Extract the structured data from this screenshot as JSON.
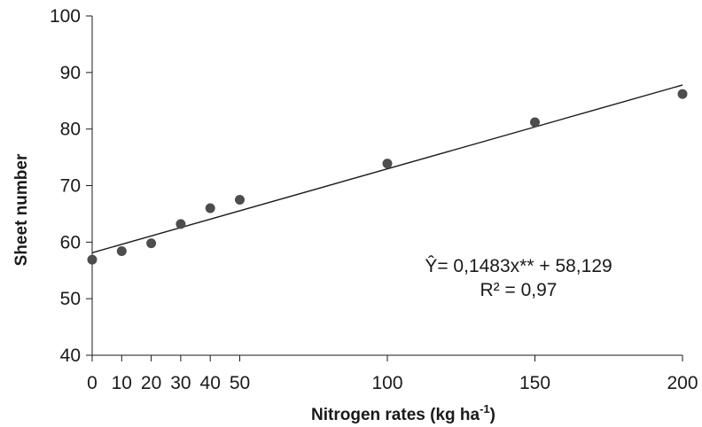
{
  "chart_data": {
    "type": "scatter",
    "xlabel": "Nitrogen rates (kg ha",
    "xlabel_sup": "-1",
    "xlabel_close": ")",
    "ylabel": "Sheet number",
    "xlim": [
      0,
      200
    ],
    "ylim": [
      40,
      100
    ],
    "x_ticks": [
      0,
      10,
      20,
      30,
      40,
      50,
      100,
      150,
      200
    ],
    "x_tick_labels": [
      "0",
      "10",
      "20",
      "30",
      "40",
      "50",
      "100",
      "150",
      "200"
    ],
    "y_ticks": [
      40,
      50,
      60,
      70,
      80,
      90,
      100
    ],
    "y_tick_labels": [
      "40",
      "50",
      "60",
      "70",
      "80",
      "90",
      "100"
    ],
    "grid": false,
    "marker_color": "#4d4d4d",
    "line_color": "#1a1a1a",
    "series": [
      {
        "x": [
          0,
          10,
          20,
          30,
          40,
          50,
          100,
          150,
          200
        ],
        "y": [
          56.9,
          58.4,
          59.8,
          63.2,
          66.0,
          67.5,
          73.9,
          81.2,
          86.2
        ]
      }
    ],
    "trendline": {
      "slope": 0.1483,
      "intercept": 58.129,
      "x_range": [
        0,
        200
      ]
    },
    "annotations": {
      "equation": "Ŷ= 0,1483x** + 58,129",
      "r2": "R² = 0,97"
    }
  }
}
